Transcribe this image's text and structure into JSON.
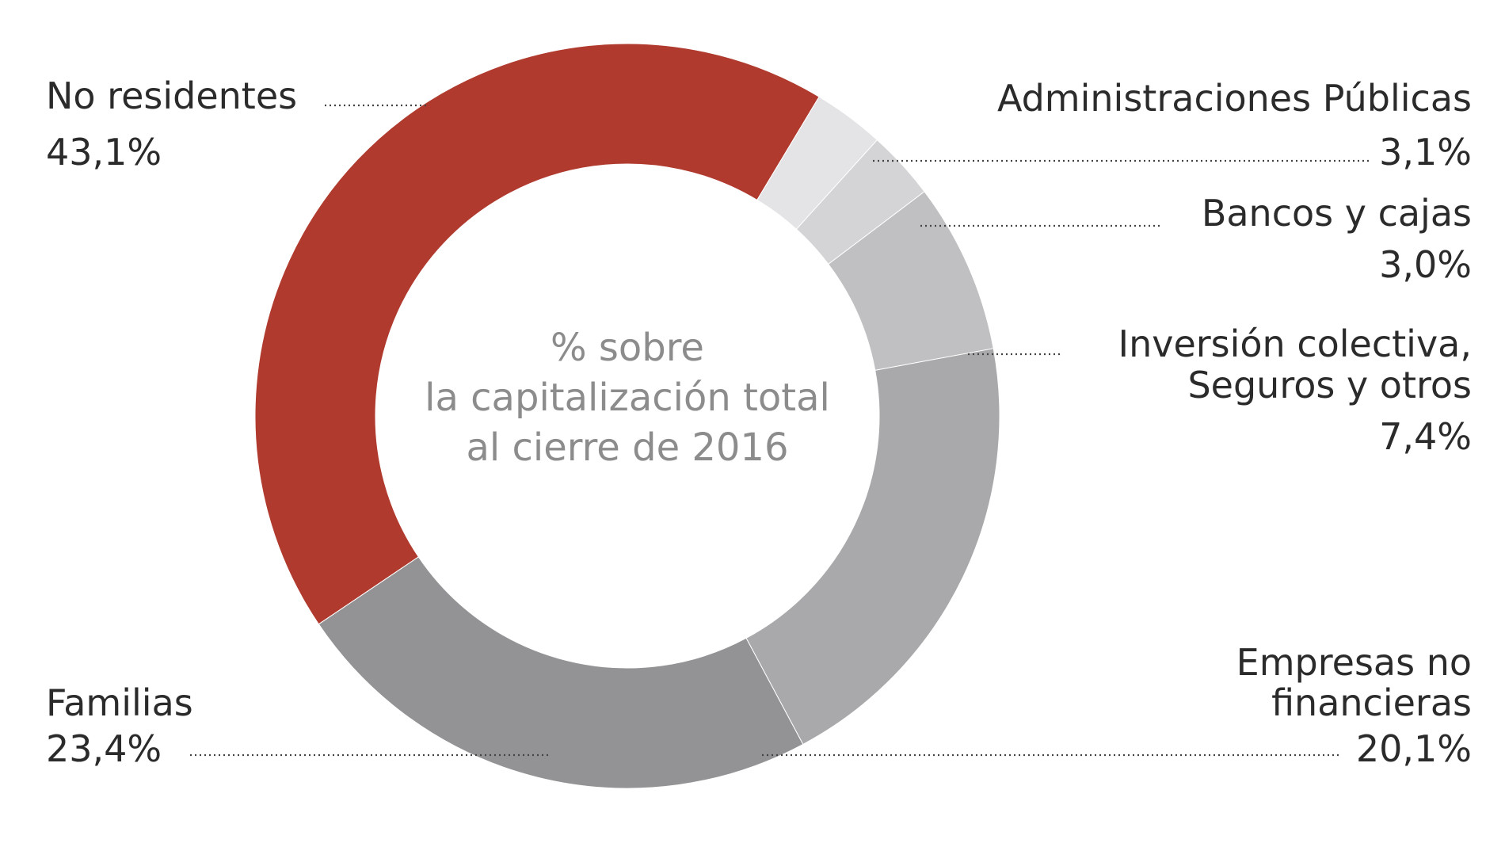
{
  "chart_data": {
    "type": "pie",
    "donut": true,
    "center_text": [
      "% sobre",
      "la capitalización total",
      "al cierre de 2016"
    ],
    "slices": [
      {
        "name": "No residentes",
        "label_lines": [
          "No residentes"
        ],
        "value": 43.1,
        "value_label": "43,1%",
        "color": "#b03a2e"
      },
      {
        "name": "Administraciones Públicas",
        "label_lines": [
          "Administraciones Públicas"
        ],
        "value": 3.1,
        "value_label": "3,1%",
        "color": "#e4e4e6"
      },
      {
        "name": "Bancos y cajas",
        "label_lines": [
          "Bancos y cajas"
        ],
        "value": 3.0,
        "value_label": "3,0%",
        "color": "#d4d4d6"
      },
      {
        "name": "Inversión colectiva, Seguros y otros",
        "label_lines": [
          "Inversión colectiva,",
          "Seguros y otros"
        ],
        "value": 7.4,
        "value_label": "7,4%",
        "color": "#c0c0c2"
      },
      {
        "name": "Empresas no financieras",
        "label_lines": [
          "Empresas no",
          "financieras"
        ],
        "value": 20.1,
        "value_label": "20,1%",
        "color": "#a9a9ab"
      },
      {
        "name": "Familias",
        "label_lines": [
          "Familias"
        ],
        "value": 23.4,
        "value_label": "23,4%",
        "color": "#939395"
      }
    ]
  }
}
